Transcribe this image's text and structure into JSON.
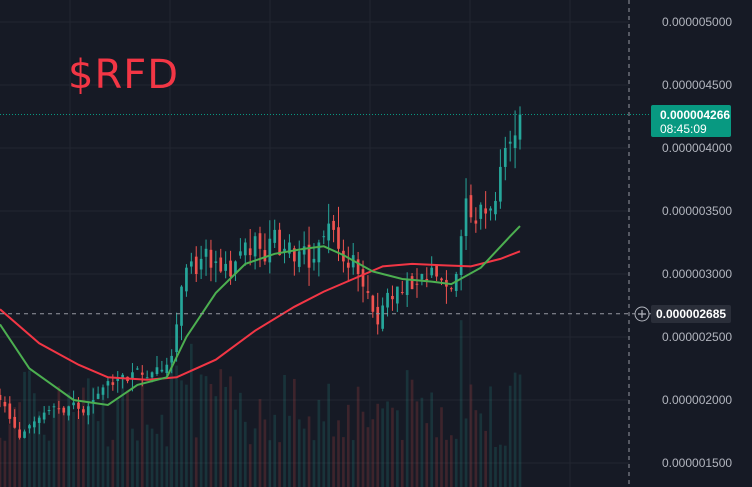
{
  "ticker": "$RFD",
  "colors": {
    "background": "#161a25",
    "grid": "#222631",
    "up": "#26a69a",
    "down": "#ef5350",
    "ma_fast": "#4caf50",
    "ma_slow": "#f23645",
    "badge": "#089981",
    "crosshair": "#9598a1"
  },
  "price_axis": {
    "ticks": [
      "0.000005000",
      "0.000004500",
      "0.000004000",
      "0.000003500",
      "0.000003000",
      "0.000002500",
      "0.000002000",
      "0.000001500"
    ],
    "last_price": "0.000004266",
    "countdown": "08:45:09",
    "crosshair_price": "0.000002685"
  },
  "chart_data": {
    "type": "candlestick",
    "ylim": [
      1.4e-06,
      5.2e-06
    ],
    "last_price": 4.266e-06,
    "crosshair_price": 2.685e-06,
    "closes": [
      2e-06,
      1.95e-06,
      1.85e-06,
      1.78e-06,
      1.7e-06,
      1.75e-06,
      1.8e-06,
      1.83e-06,
      1.86e-06,
      1.9e-06,
      1.92e-06,
      1.95e-06,
      1.93e-06,
      1.9e-06,
      1.95e-06,
      1.98e-06,
      1.93e-06,
      1.9e-06,
      1.95e-06,
      2e-06,
      2.05e-06,
      2.1e-06,
      2.15e-06,
      2.12e-06,
      2.18e-06,
      2.2e-06,
      2.15e-06,
      2.22e-06,
      2.25e-06,
      2.2e-06,
      2.18e-06,
      2.22e-06,
      2.26e-06,
      2.24e-06,
      2.28e-06,
      2.35e-06,
      2.6e-06,
      2.9e-06,
      3.05e-06,
      3.1e-06,
      3e-06,
      3.12e-06,
      3.2e-06,
      3.05e-06,
      3.1e-06,
      3.02e-06,
      3.08e-06,
      2.98e-06,
      3.1e-06,
      3.18e-06,
      3.25e-06,
      3.15e-06,
      3.3e-06,
      3.2e-06,
      3.1e-06,
      3.28e-06,
      3.35e-06,
      3.15e-06,
      3.2e-06,
      3.25e-06,
      3.1e-06,
      3.18e-06,
      3.22e-06,
      3.05e-06,
      3.12e-06,
      3.25e-06,
      3.3e-06,
      3.4e-06,
      3.35e-06,
      3.2e-06,
      3.1e-06,
      3.05e-06,
      3.15e-06,
      3e-06,
      2.9e-06,
      2.85e-06,
      2.7e-06,
      2.6e-06,
      2.75e-06,
      2.85e-06,
      2.8e-06,
      2.9e-06,
      2.85e-06,
      2.95e-06,
      2.88e-06,
      2.92e-06,
      3e-06,
      2.95e-06,
      3.05e-06,
      2.98e-06,
      2.95e-06,
      2.9e-06,
      2.88e-06,
      3e-06,
      3.3e-06,
      3.6e-06,
      3.45e-06,
      3.4e-06,
      3.55e-06,
      3.48e-06,
      3.52e-06,
      3.58e-06,
      3.85e-06,
      4e-06,
      4.05e-06,
      4.1e-06,
      4.266e-06
    ],
    "ma_fast": [
      [
        0,
        2.6e-06
      ],
      [
        6,
        2.25e-06
      ],
      [
        15,
        2e-06
      ],
      [
        22,
        1.96e-06
      ],
      [
        28,
        2.12e-06
      ],
      [
        34,
        2.18e-06
      ],
      [
        38,
        2.5e-06
      ],
      [
        44,
        2.85e-06
      ],
      [
        50,
        3.08e-06
      ],
      [
        56,
        3.16e-06
      ],
      [
        62,
        3.2e-06
      ],
      [
        66,
        3.22e-06
      ],
      [
        70,
        3.15e-06
      ],
      [
        76,
        3.02e-06
      ],
      [
        82,
        2.96e-06
      ],
      [
        88,
        2.94e-06
      ],
      [
        92,
        2.92e-06
      ],
      [
        98,
        3.05e-06
      ],
      [
        104,
        3.3e-06
      ],
      [
        106,
        3.38e-06
      ]
    ],
    "ma_slow": [
      [
        0,
        2.72e-06
      ],
      [
        8,
        2.45e-06
      ],
      [
        16,
        2.28e-06
      ],
      [
        22,
        2.18e-06
      ],
      [
        30,
        2.16e-06
      ],
      [
        36,
        2.18e-06
      ],
      [
        44,
        2.32e-06
      ],
      [
        52,
        2.55e-06
      ],
      [
        60,
        2.74e-06
      ],
      [
        66,
        2.86e-06
      ],
      [
        72,
        2.96e-06
      ],
      [
        78,
        3.06e-06
      ],
      [
        84,
        3.08e-06
      ],
      [
        90,
        3.07e-06
      ],
      [
        96,
        3.06e-06
      ],
      [
        102,
        3.12e-06
      ],
      [
        106,
        3.18e-06
      ]
    ]
  }
}
